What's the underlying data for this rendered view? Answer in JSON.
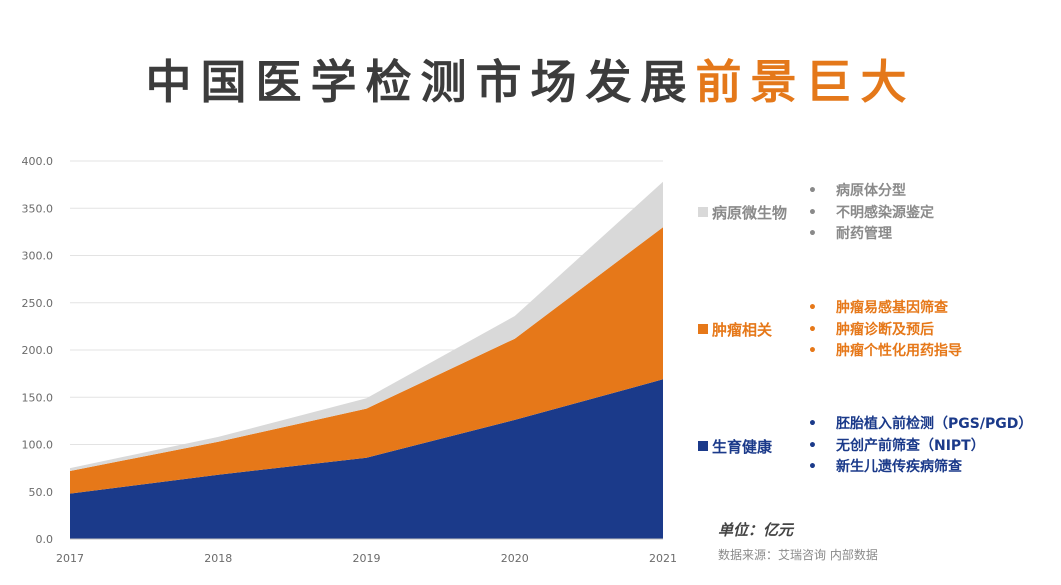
{
  "title": {
    "main": "中国医学检测市场发展",
    "highlight": "前景巨大"
  },
  "colors": {
    "pathogen": "#d9d9d9",
    "tumor": "#e67819",
    "reproductive": "#1b3a8a",
    "accent": "#e4781a",
    "title": "#3c3c3c",
    "grid": "#e3e3e3",
    "axis_text": "#6b6b6b"
  },
  "legend": [
    {
      "label": "病原微生物",
      "color": "#d9d9d9",
      "text_color": "#8a8a8a",
      "items": [
        "病原体分型",
        "不明感染源鉴定",
        "耐药管理"
      ]
    },
    {
      "label": "肿瘤相关",
      "color": "#e67819",
      "text_color": "#e67819",
      "items": [
        "肿瘤易感基因筛查",
        "肿瘤诊断及预后",
        "肿瘤个性化用药指导"
      ]
    },
    {
      "label": "生育健康",
      "color": "#1b3a8a",
      "text_color": "#1b3a8a",
      "items": [
        "胚胎植入前检测（PGS/PGD）",
        "无创产前筛查（NIPT）",
        "新生儿遗传疾病筛查"
      ]
    }
  ],
  "unit": "单位：亿元",
  "source": "数据来源：艾瑞咨询 内部数据",
  "chart_data": {
    "type": "area",
    "stacked": true,
    "categories": [
      "2017",
      "2018",
      "2019",
      "2020",
      "2021"
    ],
    "series": [
      {
        "name": "生育健康",
        "values": [
          48,
          68,
          86,
          126,
          169
        ],
        "color": "#1b3a8a"
      },
      {
        "name": "肿瘤相关",
        "values": [
          24,
          35,
          52,
          86,
          161
        ],
        "color": "#e67819"
      },
      {
        "name": "病原微生物",
        "values": [
          3,
          5,
          11,
          24,
          48
        ],
        "color": "#d9d9d9"
      }
    ],
    "ylim": [
      0,
      400
    ],
    "yticks": [
      "0.0",
      "50.0",
      "100.0",
      "150.0",
      "200.0",
      "250.0",
      "300.0",
      "350.0",
      "400.0"
    ],
    "grid": true,
    "xlabel": "",
    "ylabel": ""
  }
}
